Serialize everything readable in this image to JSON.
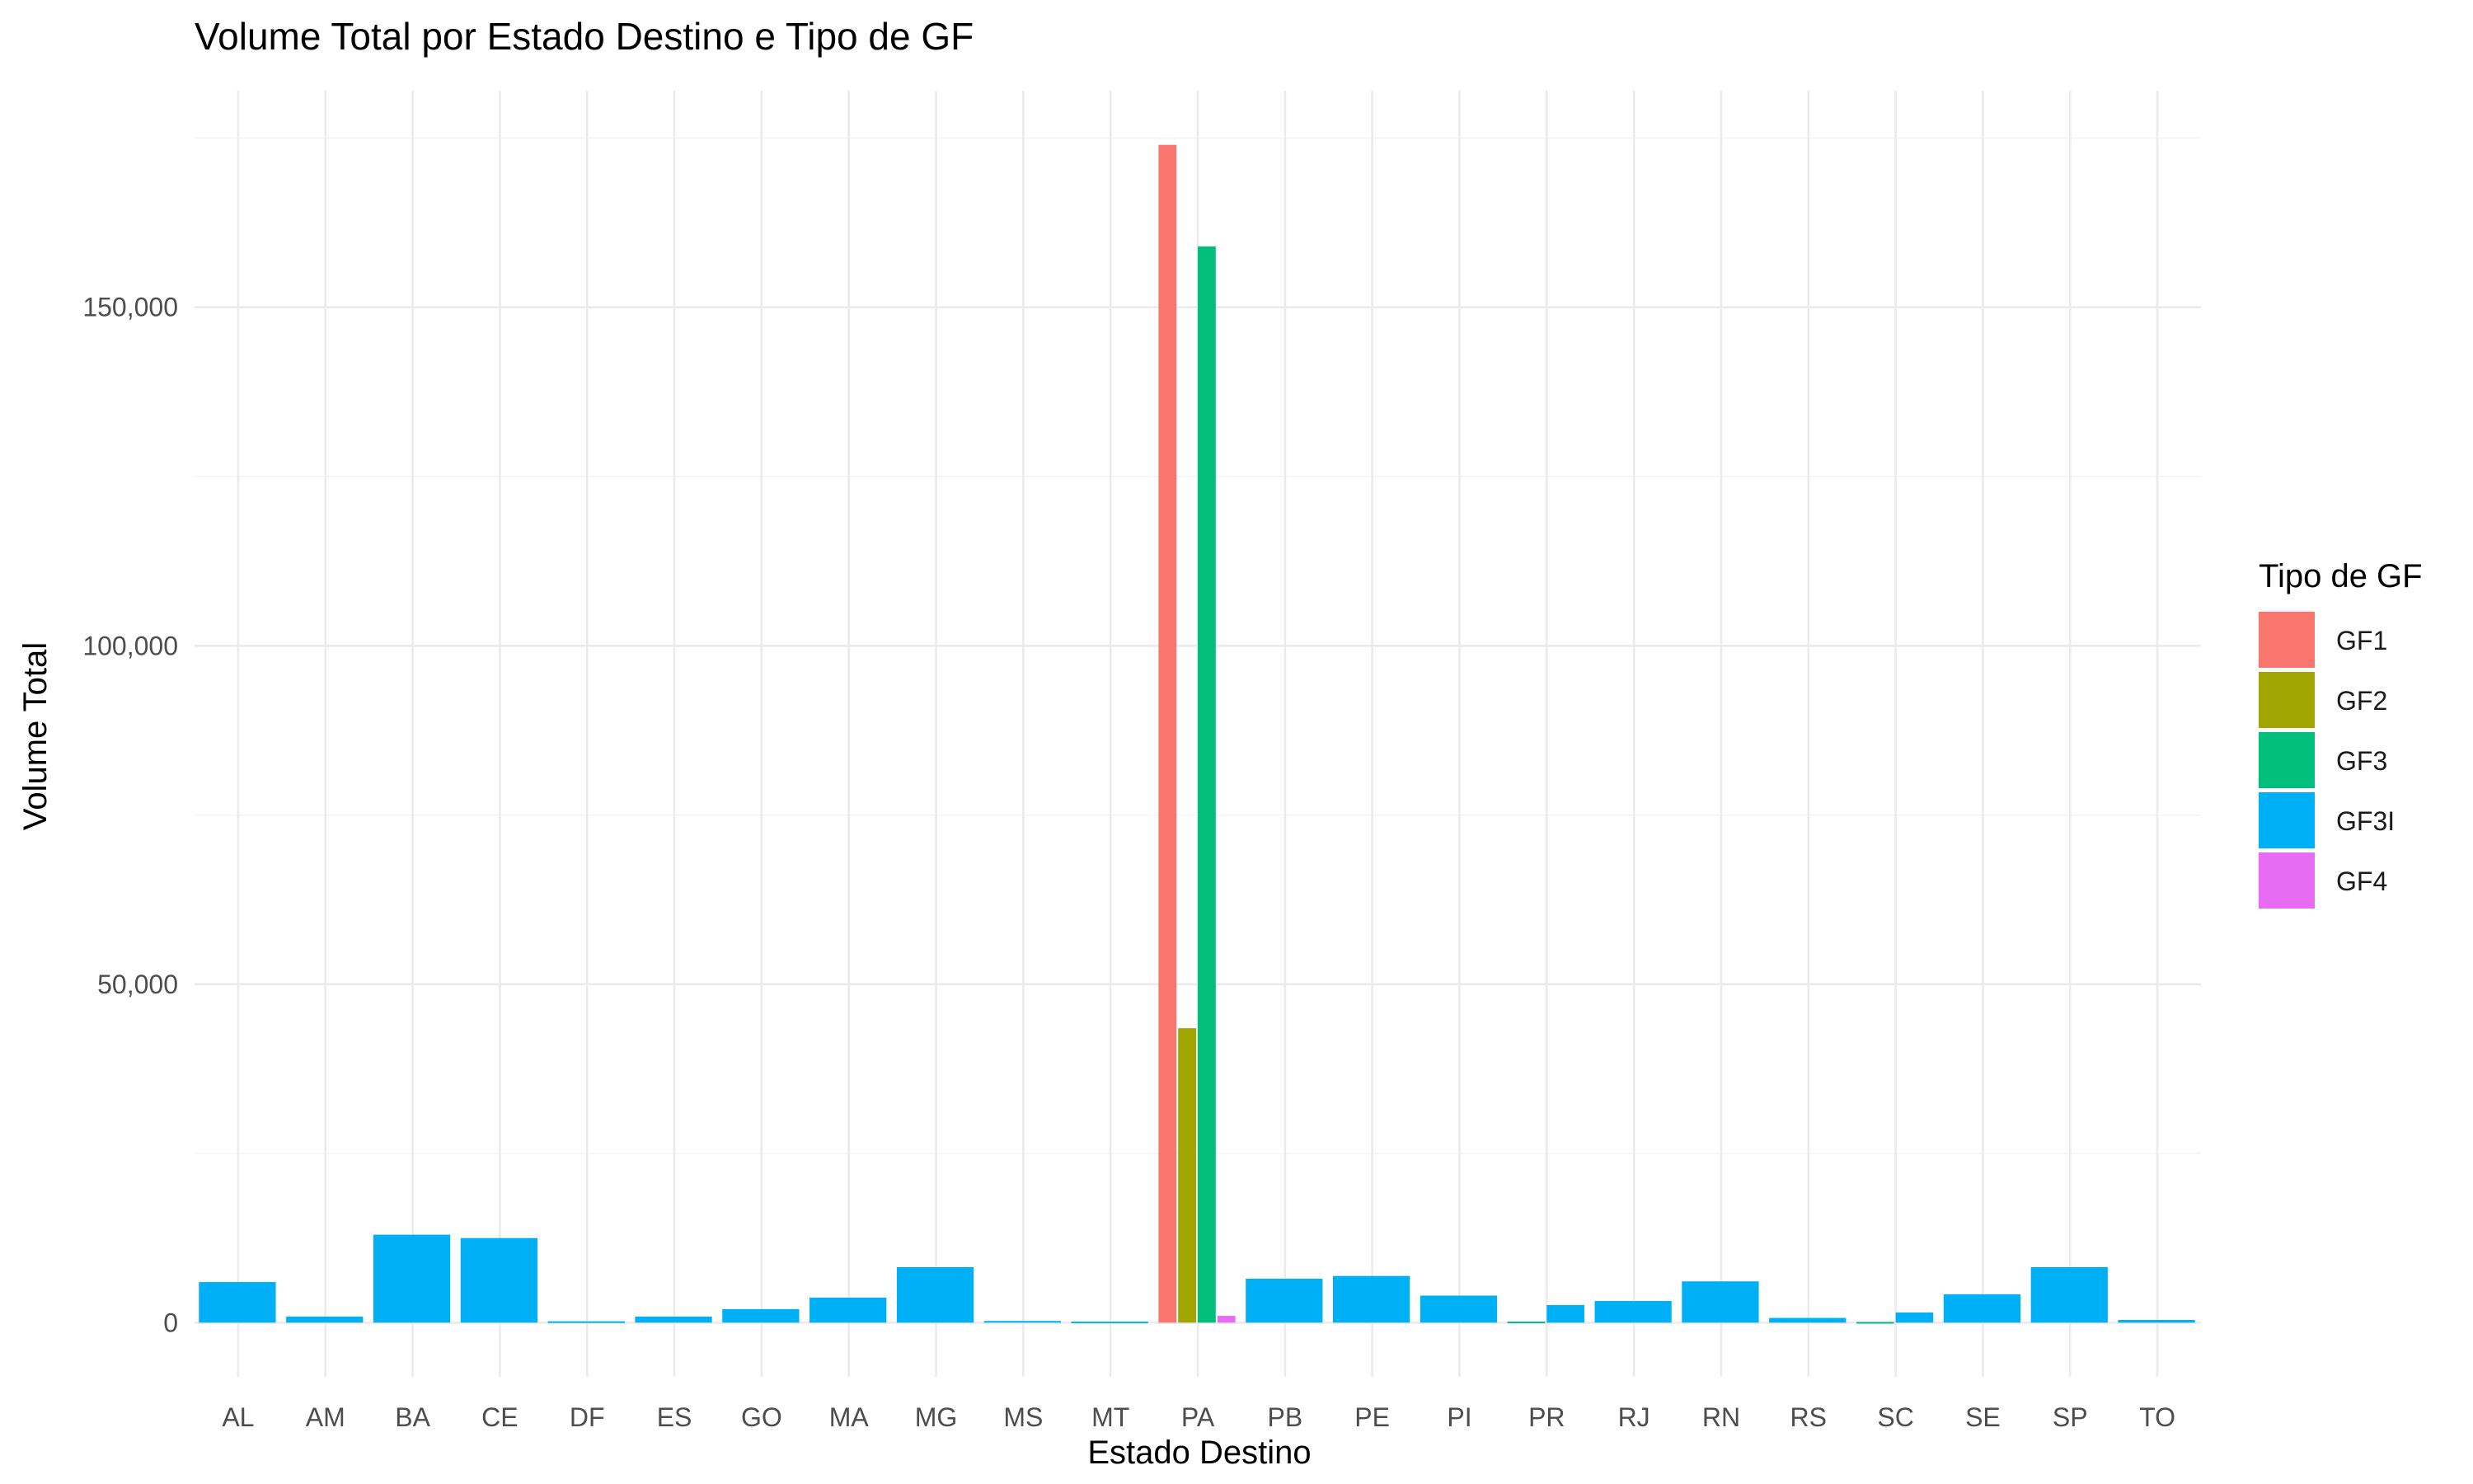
{
  "chart_data": {
    "type": "bar",
    "title": "Volume Total por Estado Destino e Tipo de GF",
    "xlabel": "Estado Destino",
    "ylabel": "Volume Total",
    "ylim": [
      -8000,
      182000
    ],
    "y_ticks": [
      0,
      50000,
      100000,
      150000
    ],
    "y_tick_labels": [
      "0",
      "50,000",
      "100,000",
      "150,000"
    ],
    "grid": true,
    "legend_position": "right",
    "legend_title": "Tipo de GF",
    "categories": [
      "AL",
      "AM",
      "BA",
      "CE",
      "DF",
      "ES",
      "GO",
      "MA",
      "MG",
      "MS",
      "MT",
      "PA",
      "PB",
      "PE",
      "PI",
      "PR",
      "RJ",
      "RN",
      "RS",
      "SC",
      "SE",
      "SP",
      "TO"
    ],
    "series_colors": {
      "GF1": "#F8766D",
      "GF2": "#A3A500",
      "GF3": "#00BF7D",
      "GF3I": "#00B0F6",
      "GF4": "#E76BF3"
    },
    "series": [
      {
        "name": "GF1",
        "values": {
          "PA": 174000
        }
      },
      {
        "name": "GF2",
        "values": {
          "PA": 43500
        }
      },
      {
        "name": "GF3",
        "values": {
          "PA": 159000,
          "PR": 150,
          "SC": 100
        }
      },
      {
        "name": "GF3I",
        "values": {
          "AL": 6000,
          "AM": 900,
          "BA": 13000,
          "CE": 12500,
          "DF": 200,
          "ES": 900,
          "GO": 2000,
          "MA": 3700,
          "MG": 8200,
          "MS": 250,
          "MT": 150,
          "PB": 6500,
          "PE": 6900,
          "PI": 4000,
          "PR": 2600,
          "RJ": 3200,
          "RN": 6100,
          "RS": 700,
          "SC": 1500,
          "SE": 4200,
          "SP": 8200,
          "TO": 400
        }
      },
      {
        "name": "GF4",
        "values": {
          "PA": 1000
        }
      }
    ]
  }
}
